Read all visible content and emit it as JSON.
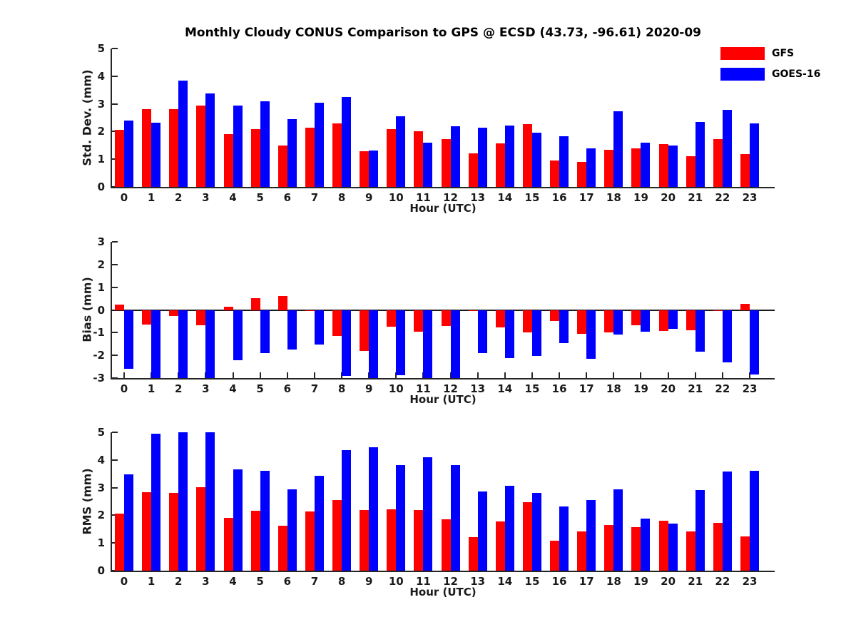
{
  "title": "Monthly Cloudy CONUS Comparison to GPS @ ECSD (43.73, -96.61) 2020-09",
  "colors": {
    "gfs": "#ff0000",
    "goes16": "#0000ff",
    "axis": "#262626",
    "text": "#1a1a1a"
  },
  "legend": [
    {
      "label": "GFS",
      "color": "gfs"
    },
    {
      "label": "GOES-16",
      "color": "goes16"
    }
  ],
  "chart_data": [
    {
      "type": "bar",
      "ylabel": "Std. Dev. (mm)",
      "xlabel": "Hour (UTC)",
      "ylim": [
        0,
        5
      ],
      "yticks": [
        0,
        1,
        2,
        3,
        4,
        5
      ],
      "grid": false,
      "legend_position": "top-right",
      "categories": [
        0,
        1,
        2,
        3,
        4,
        5,
        6,
        7,
        8,
        9,
        10,
        11,
        12,
        13,
        14,
        15,
        16,
        17,
        18,
        19,
        20,
        21,
        22,
        23
      ],
      "series": [
        {
          "name": "GFS",
          "color": "gfs",
          "values": [
            2.05,
            2.8,
            2.8,
            2.95,
            1.9,
            2.1,
            1.5,
            2.15,
            2.3,
            1.3,
            2.1,
            2.0,
            1.72,
            1.2,
            1.57,
            2.28,
            0.95,
            0.9,
            1.33,
            1.4,
            1.55,
            1.1,
            1.72,
            1.18
          ]
        },
        {
          "name": "GOES-16",
          "color": "goes16",
          "values": [
            2.4,
            2.33,
            3.85,
            3.38,
            2.95,
            3.1,
            2.45,
            3.05,
            3.25,
            1.32,
            2.55,
            1.6,
            2.2,
            2.15,
            2.22,
            1.97,
            1.83,
            1.38,
            2.73,
            1.6,
            1.5,
            2.35,
            2.78,
            2.3
          ]
        }
      ]
    },
    {
      "type": "bar",
      "ylabel": "Bias (mm)",
      "xlabel": "Hour (UTC)",
      "ylim": [
        -3,
        3
      ],
      "yticks": [
        -3,
        -2,
        -1,
        0,
        1,
        2,
        3
      ],
      "grid": false,
      "categories": [
        0,
        1,
        2,
        3,
        4,
        5,
        6,
        7,
        8,
        9,
        10,
        11,
        12,
        13,
        14,
        15,
        16,
        17,
        18,
        19,
        20,
        21,
        22,
        23
      ],
      "series": [
        {
          "name": "GFS",
          "color": "gfs",
          "values": [
            0.25,
            -0.65,
            -0.28,
            -0.68,
            0.15,
            0.52,
            0.6,
            -0.05,
            -1.15,
            -1.8,
            -0.73,
            -0.95,
            -0.72,
            -0.05,
            -0.78,
            -1.0,
            -0.5,
            -1.05,
            -1.0,
            -0.66,
            -0.93,
            -0.9,
            -0.05,
            0.28
          ]
        },
        {
          "name": "GOES-16",
          "color": "goes16",
          "values": [
            -2.6,
            -3.0,
            -3.0,
            -3.0,
            -2.2,
            -1.9,
            -1.75,
            -1.52,
            -2.92,
            -3.0,
            -2.88,
            -3.0,
            -3.0,
            -1.9,
            -2.12,
            -2.02,
            -1.46,
            -2.14,
            -1.08,
            -0.97,
            -0.82,
            -1.83,
            -2.3,
            -2.85
          ]
        }
      ]
    },
    {
      "type": "bar",
      "ylabel": "RMS (mm)",
      "xlabel": "Hour (UTC)",
      "ylim": [
        0,
        5
      ],
      "yticks": [
        0,
        1,
        2,
        3,
        4,
        5
      ],
      "grid": false,
      "categories": [
        0,
        1,
        2,
        3,
        4,
        5,
        6,
        7,
        8,
        9,
        10,
        11,
        12,
        13,
        14,
        15,
        16,
        17,
        18,
        19,
        20,
        21,
        22,
        23
      ],
      "series": [
        {
          "name": "GFS",
          "color": "gfs",
          "values": [
            2.06,
            2.84,
            2.81,
            3.02,
            1.91,
            2.16,
            1.63,
            2.14,
            2.55,
            2.2,
            2.21,
            2.19,
            1.86,
            1.21,
            1.77,
            2.47,
            1.07,
            1.41,
            1.65,
            1.57,
            1.8,
            1.41,
            1.72,
            1.23
          ]
        },
        {
          "name": "GOES-16",
          "color": "goes16",
          "values": [
            3.47,
            4.95,
            5.0,
            5.0,
            3.67,
            3.61,
            2.95,
            3.42,
            4.35,
            4.45,
            3.81,
            4.11,
            3.82,
            2.85,
            3.07,
            2.8,
            2.33,
            2.56,
            2.94,
            1.88,
            1.69,
            2.92,
            3.57,
            3.6
          ]
        }
      ]
    }
  ]
}
